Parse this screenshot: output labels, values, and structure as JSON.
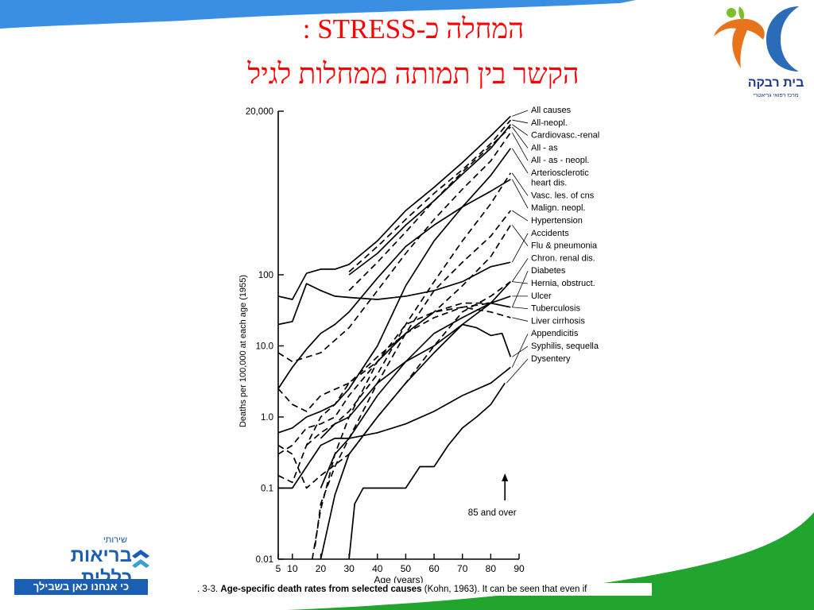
{
  "slide": {
    "title_line1": "המחלה כ-STRESS :",
    "title_line2": "הקשר בין תמותה ממחלות לגיל",
    "caption_prefix": ". 3-3.",
    "caption_bold": "Age-specific death rates from selected causes",
    "caption_rest": "(Kohn, 1963).  It can be seen that even if"
  },
  "logos": {
    "top_right_name": "בית רבקה",
    "top_right_sub": "מרכז רפואי גריאטרי",
    "bottom_left_small": "שירותי",
    "bottom_left_main": "בריאות כללית",
    "bottom_left_tagline": "כי אנחנו כאן בשבילך"
  },
  "colors": {
    "title": "#ff0000",
    "blue_swoosh": "#3b8fe3",
    "green_swoosh": "#22a52f",
    "logo_orange": "#e8731d",
    "logo_blue": "#2b6cb8",
    "logo_green": "#7bbf2a"
  },
  "chart_data": {
    "type": "line",
    "title": "",
    "xlabel": "Age (years)",
    "ylabel": "Deaths per 100,000 at each age (1955)",
    "yscale": "log",
    "xlim": [
      5,
      90
    ],
    "ylim": [
      0.01,
      20000
    ],
    "x_ticks": [
      5,
      10,
      20,
      30,
      40,
      50,
      60,
      70,
      80,
      90
    ],
    "x_tick_labels": [
      "5",
      "10",
      "20",
      "30",
      "40",
      "50",
      "60",
      "70",
      "80",
      "90"
    ],
    "y_ticks": [
      0.01,
      0.1,
      1,
      10,
      100,
      20000
    ],
    "y_tick_labels": [
      "0.01",
      "0.1",
      "1.0",
      "10.0",
      "100",
      "20,000"
    ],
    "annotation": "85 and over",
    "legend_position": "right",
    "series": [
      {
        "name": "All causes",
        "style": "solid",
        "x": [
          5,
          10,
          15,
          20,
          25,
          30,
          40,
          50,
          60,
          70,
          80,
          87
        ],
        "y": [
          50,
          45,
          105,
          120,
          120,
          140,
          300,
          800,
          1700,
          3800,
          9000,
          17000
        ]
      },
      {
        "name": "All-neopl.",
        "style": "dashed",
        "x": [
          30,
          40,
          50,
          60,
          70,
          80,
          87
        ],
        "y": [
          110,
          250,
          600,
          1400,
          3000,
          7000,
          15000
        ]
      },
      {
        "name": "Cardiovasc.-renal",
        "style": "solid",
        "x": [
          30,
          40,
          50,
          60,
          70,
          80,
          87
        ],
        "y": [
          100,
          200,
          500,
          1100,
          2600,
          6000,
          13000
        ]
      },
      {
        "name": "All - as",
        "style": "dashed",
        "x": [
          30,
          40,
          50,
          60,
          70,
          80,
          87
        ],
        "y": [
          60,
          150,
          400,
          1100,
          2800,
          6500,
          12000
        ]
      },
      {
        "name": "All - as - neopl.",
        "style": "dashed",
        "x": [
          5,
          10,
          20,
          30,
          40,
          50,
          60,
          70,
          80,
          87
        ],
        "y": [
          8,
          6,
          8,
          18,
          60,
          200,
          600,
          1600,
          4000,
          10000
        ]
      },
      {
        "name": "Arteriosclerotic heart dis.",
        "style": "solid",
        "x": [
          5,
          10,
          15,
          20,
          25,
          30,
          40,
          50,
          60,
          70,
          80,
          87
        ],
        "y": [
          0.6,
          0.7,
          1,
          1.2,
          1.5,
          2.5,
          10,
          70,
          300,
          900,
          2500,
          6000
        ]
      },
      {
        "name": "Vasc. les. of cns",
        "style": "dashed",
        "x": [
          15,
          20,
          25,
          30,
          40,
          50,
          60,
          70,
          80,
          87
        ],
        "y": [
          0.4,
          0.6,
          0.8,
          1.2,
          4,
          20,
          80,
          300,
          1000,
          2700
        ]
      },
      {
        "name": "Malign. neopl.",
        "style": "solid",
        "x": [
          5,
          10,
          15,
          20,
          25,
          30,
          40,
          50,
          60,
          70,
          80,
          87
        ],
        "y": [
          2.5,
          5,
          9,
          15,
          20,
          30,
          90,
          250,
          500,
          900,
          1500,
          2200
        ]
      },
      {
        "name": "Hypertension",
        "style": "dashed",
        "x": [
          18,
          20,
          25,
          30,
          40,
          50,
          60,
          70,
          80,
          87
        ],
        "y": [
          0.015,
          0.06,
          0.2,
          0.5,
          3,
          15,
          60,
          150,
          350,
          800
        ]
      },
      {
        "name": "Accidents",
        "style": "solid",
        "x": [
          5,
          10,
          15,
          20,
          25,
          30,
          40,
          50,
          60,
          70,
          80,
          87
        ],
        "y": [
          20,
          22,
          75,
          60,
          50,
          48,
          45,
          50,
          60,
          80,
          130,
          150
        ]
      },
      {
        "name": "Flu & pneumonia",
        "style": "dashed",
        "x": [
          5,
          10,
          15,
          20,
          30,
          40,
          50,
          60,
          70,
          80,
          87
        ],
        "y": [
          2.5,
          1.5,
          1.2,
          2,
          3,
          6,
          15,
          30,
          70,
          180,
          500
        ]
      },
      {
        "name": "Chron. renal dis.",
        "style": "solid",
        "x": [
          20,
          25,
          30,
          40,
          50,
          60,
          70,
          80,
          87
        ],
        "y": [
          0.5,
          0.8,
          1,
          3,
          6,
          10,
          20,
          40,
          80
        ]
      },
      {
        "name": "Diabetes",
        "style": "dashed",
        "x": [
          5,
          10,
          15,
          20,
          25,
          30,
          40,
          50,
          60,
          70,
          80,
          87
        ],
        "y": [
          0.3,
          0.4,
          0.7,
          0.8,
          1,
          2,
          6,
          15,
          30,
          40,
          40,
          35
        ]
      },
      {
        "name": "Hernia, obstruct.",
        "style": "dashed",
        "x": [
          5,
          10,
          15,
          20,
          30,
          40,
          50,
          60,
          70,
          80,
          87
        ],
        "y": [
          0.4,
          0.3,
          0.1,
          0.15,
          0.3,
          1,
          3,
          10,
          30,
          50,
          80
        ]
      },
      {
        "name": "Ulcer",
        "style": "solid",
        "x": [
          20,
          25,
          30,
          40,
          50,
          60,
          70,
          80,
          87
        ],
        "y": [
          0.1,
          0.3,
          0.5,
          2,
          6,
          15,
          25,
          40,
          50
        ]
      },
      {
        "name": "Tuberculosis",
        "style": "dashed",
        "x": [
          5,
          10,
          15,
          20,
          25,
          30,
          40,
          50,
          60,
          70,
          80,
          87
        ],
        "y": [
          0.15,
          0.12,
          0.4,
          1,
          1.5,
          3,
          7,
          15,
          25,
          35,
          40,
          35
        ]
      },
      {
        "name": "Liver cirrhosis",
        "style": "dashed",
        "x": [
          17,
          20,
          25,
          30,
          40,
          50,
          60,
          70,
          80,
          87
        ],
        "y": [
          0.01,
          0.05,
          0.3,
          1,
          6,
          20,
          30,
          35,
          30,
          25
        ]
      },
      {
        "name": "Appendicitis",
        "style": "solid",
        "x": [
          5,
          10,
          15,
          20,
          25,
          30,
          40,
          50,
          60,
          70,
          80,
          87
        ],
        "y": [
          0.1,
          0.1,
          0.2,
          0.4,
          0.5,
          0.5,
          0.6,
          0.8,
          1.2,
          2,
          3,
          5
        ]
      },
      {
        "name": "Syphilis, sequella",
        "style": "solid",
        "x": [
          20,
          25,
          30,
          40,
          50,
          60,
          70,
          75,
          80,
          84,
          87
        ],
        "y": [
          0.01,
          0.08,
          0.3,
          1,
          3,
          8,
          20,
          18,
          14,
          15,
          7
        ]
      },
      {
        "name": "Dysentery",
        "style": "solid",
        "x": [
          30,
          32,
          35,
          40,
          45,
          50,
          55,
          60,
          65,
          70,
          75,
          80,
          85
        ],
        "y": [
          0.01,
          0.06,
          0.1,
          0.1,
          0.1,
          0.1,
          0.2,
          0.2,
          0.4,
          0.7,
          1,
          1.5,
          3
        ]
      }
    ]
  }
}
